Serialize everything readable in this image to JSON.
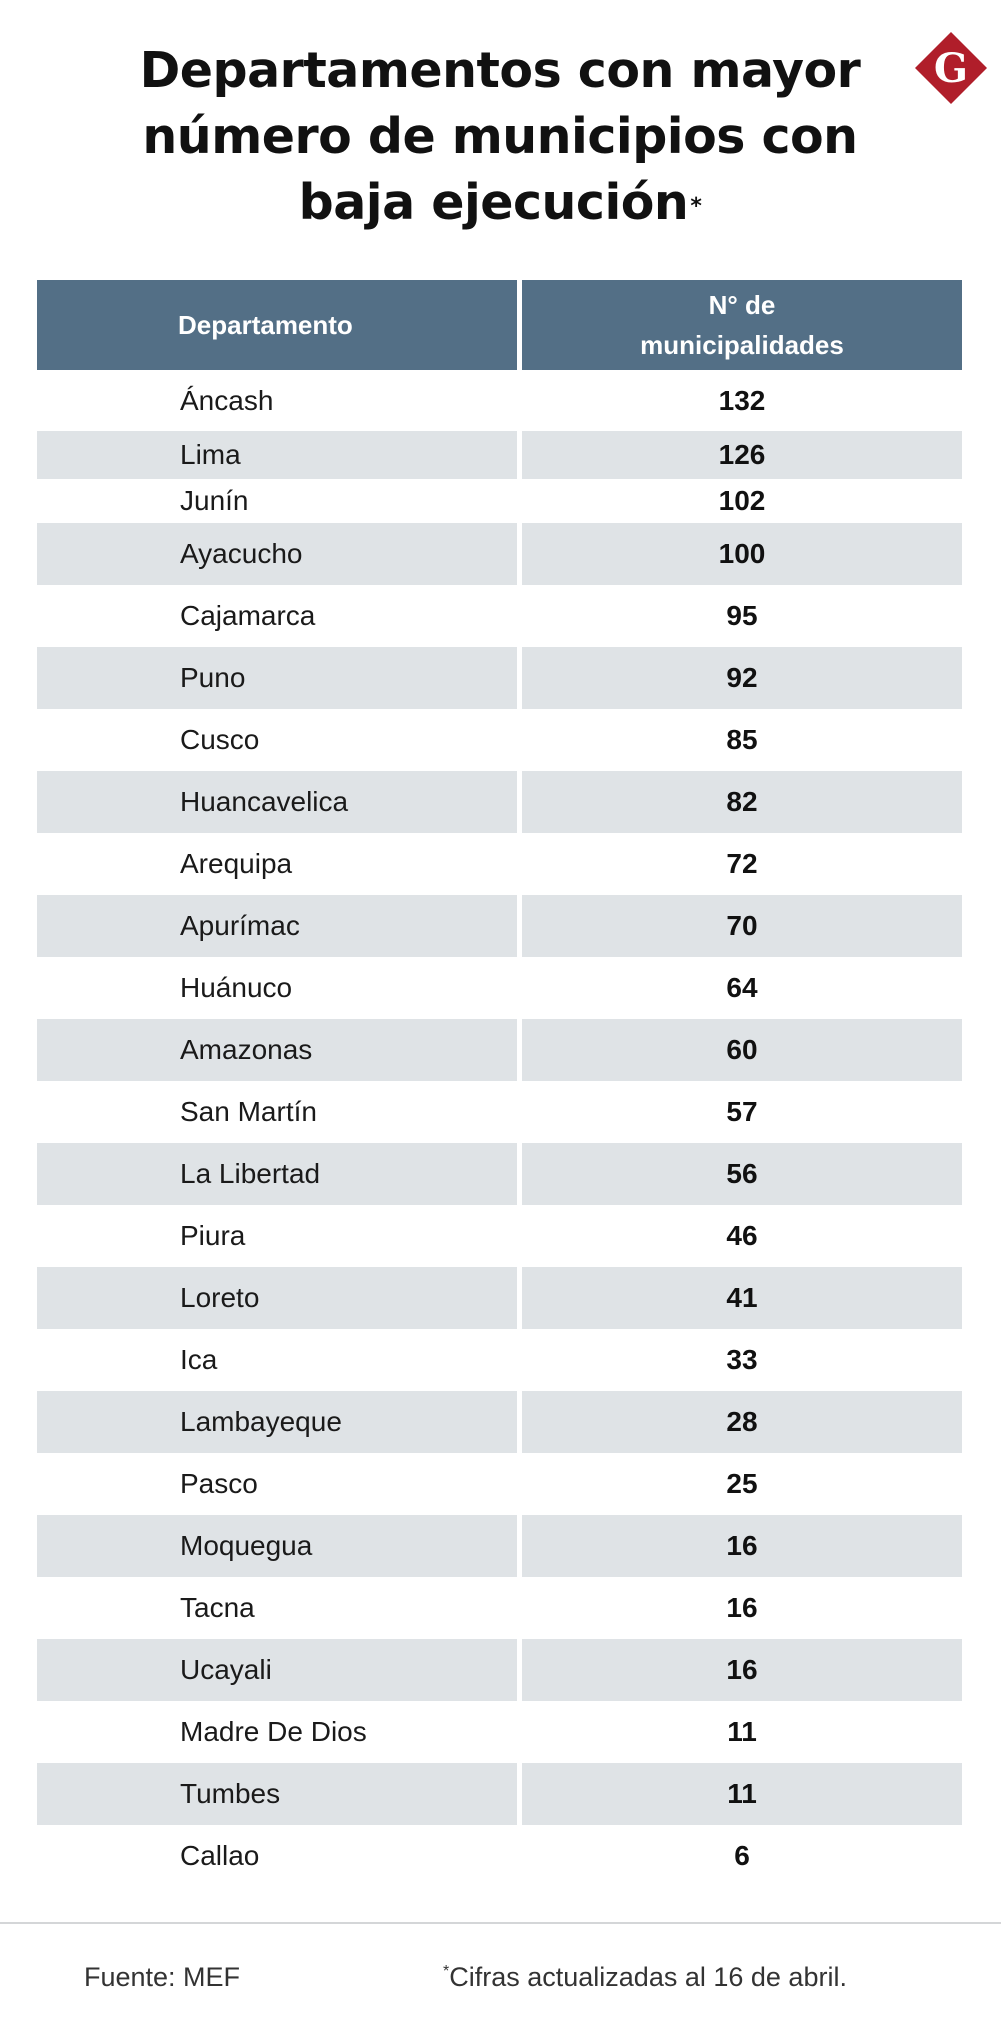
{
  "title": {
    "line1": "Departamentos con mayor",
    "line2": "número de municipios con",
    "line3": "baja ejecución",
    "asterisk": "*"
  },
  "logo": {
    "letter": "G",
    "color": "#b01e2a"
  },
  "table": {
    "headers": {
      "departamento": "Departamento",
      "municipalidades_line1": "N° de",
      "municipalidades_line2": "municipalidades"
    },
    "rows": [
      {
        "dep": "Áncash",
        "num": "132"
      },
      {
        "dep": "Lima",
        "num": "126"
      },
      {
        "dep": "Junín",
        "num": "102"
      },
      {
        "dep": "Ayacucho",
        "num": "100"
      },
      {
        "dep": "Cajamarca",
        "num": "95"
      },
      {
        "dep": "Puno",
        "num": "92"
      },
      {
        "dep": "Cusco",
        "num": "85"
      },
      {
        "dep": "Huancavelica",
        "num": "82"
      },
      {
        "dep": "Arequipa",
        "num": "72"
      },
      {
        "dep": "Apurímac",
        "num": "70"
      },
      {
        "dep": "Huánuco",
        "num": "64"
      },
      {
        "dep": "Amazonas",
        "num": "60"
      },
      {
        "dep": "San Martín",
        "num": "57"
      },
      {
        "dep": "La Libertad",
        "num": "56"
      },
      {
        "dep": "Piura",
        "num": "46"
      },
      {
        "dep": "Loreto",
        "num": "41"
      },
      {
        "dep": "Ica",
        "num": "33"
      },
      {
        "dep": "Lambayeque",
        "num": "28"
      },
      {
        "dep": "Pasco",
        "num": "25"
      },
      {
        "dep": "Moquegua",
        "num": "16"
      },
      {
        "dep": "Tacna",
        "num": "16"
      },
      {
        "dep": "Ucayali",
        "num": "16"
      },
      {
        "dep": "Madre De Dios",
        "num": "11"
      },
      {
        "dep": "Tumbes",
        "num": "11"
      },
      {
        "dep": "Callao",
        "num": "6"
      }
    ]
  },
  "footer": {
    "source": "Fuente: MEF",
    "note_asterisk": "*",
    "note": "Cifras actualizadas al 16 de abril."
  },
  "colors": {
    "header_bg": "#536f86",
    "row_shade": "#dfe3e6"
  }
}
